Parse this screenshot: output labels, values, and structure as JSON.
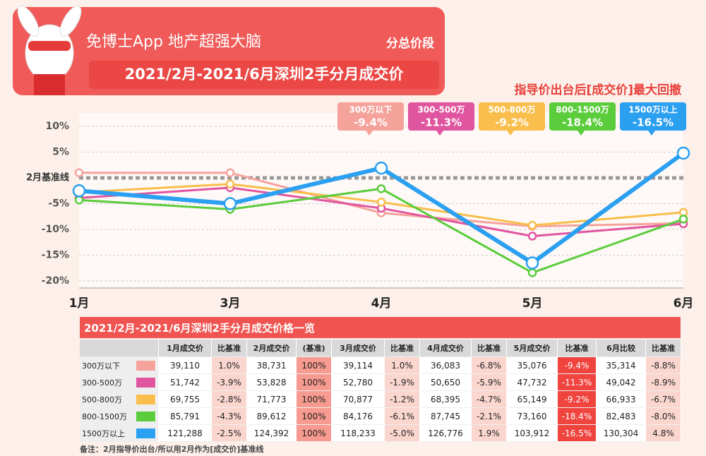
{
  "header": {
    "title": "免博士App 地产超强大脑",
    "tag": "分总价段",
    "subtitle": "2021/2月-2021/6月深圳2手分月成交价"
  },
  "chart_data": {
    "type": "line",
    "categories": [
      "1月",
      "3月",
      "4月",
      "5月",
      "6月"
    ],
    "series": [
      {
        "name": "300万以下",
        "color": "#f5a29b",
        "values": [
          1.0,
          1.0,
          -6.8,
          -9.4,
          -8.8
        ]
      },
      {
        "name": "300-500万",
        "color": "#e0559f",
        "values": [
          -3.9,
          -1.9,
          -5.9,
          -11.3,
          -8.9
        ]
      },
      {
        "name": "500-800万",
        "color": "#f9be4c",
        "values": [
          -2.8,
          -1.2,
          -4.7,
          -9.2,
          -6.7
        ]
      },
      {
        "name": "800-1500万",
        "color": "#5bcc3c",
        "values": [
          -4.3,
          -6.1,
          -2.1,
          -18.4,
          -8.0
        ]
      },
      {
        "name": "1500万以上",
        "color": "#2b9ff0",
        "values": [
          -2.5,
          -5.0,
          1.9,
          -16.5,
          4.8
        ]
      }
    ],
    "ylim": [
      -20,
      10
    ],
    "yticks": [
      {
        "value": 10,
        "label": "10%"
      },
      {
        "value": 5,
        "label": "5%"
      },
      {
        "value": 0,
        "label": "2月基准线"
      },
      {
        "value": -5,
        "label": "-5%"
      },
      {
        "value": -10,
        "label": "-10%"
      },
      {
        "value": -15,
        "label": "-15%"
      },
      {
        "value": -20,
        "label": "-20%"
      }
    ],
    "grid": true,
    "annotations": {
      "title": "指导价出台后[成交价]最大回撤",
      "boxes": [
        {
          "name": "300万以下",
          "value": "-9.4%"
        },
        {
          "name": "300-500万",
          "value": "-11.3%"
        },
        {
          "name": "500-800万",
          "value": "-9.2%"
        },
        {
          "name": "800-1500万",
          "value": "-18.4%"
        },
        {
          "name": "1500万以上",
          "value": "-16.5%"
        }
      ]
    }
  },
  "table": {
    "title": "2021/2月-2021/6月深圳2手分月成交价格一览",
    "columns": [
      "1月成交价",
      "比基准",
      "2月成交价",
      "(基准)",
      "3月成交价",
      "比基准",
      "4月成交价",
      "比基准",
      "5月成交价",
      "比基准",
      "6月比较",
      "比基准"
    ],
    "rows": [
      {
        "name": "300万以下",
        "cells": [
          "39,110",
          "1.0%",
          "38,731",
          "100%",
          "39,114",
          "1.0%",
          "36,083",
          "-6.8%",
          "35,076",
          "-9.4%",
          "35,314",
          "-8.8%"
        ]
      },
      {
        "name": "300-500万",
        "cells": [
          "51,742",
          "-3.9%",
          "53,828",
          "100%",
          "52,780",
          "-1.9%",
          "50,650",
          "-5.9%",
          "47,732",
          "-11.3%",
          "49,042",
          "-8.9%"
        ]
      },
      {
        "name": "500-800万",
        "cells": [
          "69,755",
          "-2.8%",
          "71,773",
          "100%",
          "70,877",
          "-1.2%",
          "68,395",
          "-4.7%",
          "65,149",
          "-9.2%",
          "66,933",
          "-6.7%"
        ]
      },
      {
        "name": "800-1500万",
        "cells": [
          "85,791",
          "-4.3%",
          "89,612",
          "100%",
          "84,176",
          "-6.1%",
          "87,745",
          "-2.1%",
          "73,160",
          "-18.4%",
          "82,483",
          "-8.0%"
        ]
      },
      {
        "name": "1500万以上",
        "cells": [
          "121,288",
          "-2.5%",
          "124,392",
          "100%",
          "118,233",
          "-5.0%",
          "126,776",
          "1.9%",
          "103,912",
          "-16.5%",
          "130,304",
          "4.8%"
        ]
      }
    ]
  },
  "note": "备注：2月指导价出台/所以用2月作为[成交价]基准线"
}
